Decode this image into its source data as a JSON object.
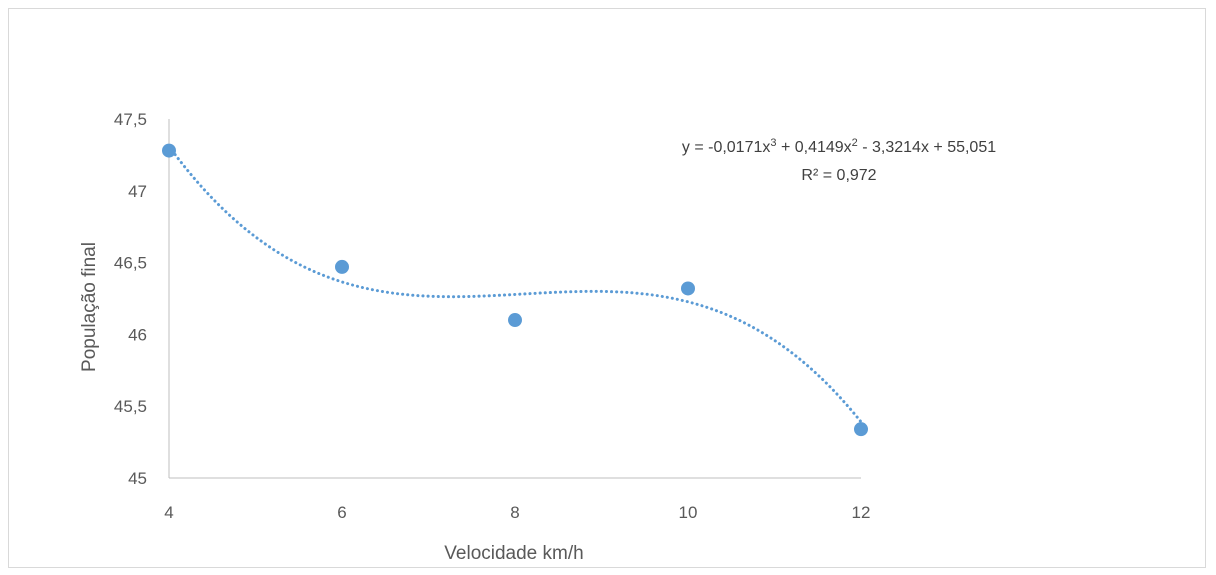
{
  "chart_data": {
    "type": "scatter",
    "xlabel": "Velocidade km/h",
    "ylabel": "População final",
    "x_ticks": [
      "4",
      "6",
      "8",
      "10",
      "12"
    ],
    "y_ticks": [
      "45",
      "45,5",
      "46",
      "46,5",
      "47",
      "47,5"
    ],
    "xlim": [
      4,
      12
    ],
    "ylim": [
      45,
      47.5
    ],
    "grid": false,
    "points": [
      {
        "x": 4,
        "y": 47.28
      },
      {
        "x": 6,
        "y": 46.47
      },
      {
        "x": 8,
        "y": 46.1
      },
      {
        "x": 10,
        "y": 46.32
      },
      {
        "x": 12,
        "y": 45.34
      }
    ],
    "trendline": {
      "type": "polynomial",
      "order": 3,
      "coefficients": {
        "a3": -0.0171,
        "a2": 0.4149,
        "a1": -3.3214,
        "a0": 55.051
      },
      "equation_parts": [
        "y = -0,0171x",
        "3",
        " + 0,4149x",
        "2",
        " - 3,3214x + 55,051"
      ],
      "r_squared_label": "R² = 0,972",
      "style": "dotted"
    },
    "colors": {
      "marker": "#5b9bd5",
      "trendline": "#5b9bd5",
      "axis": "#bfbfbf"
    }
  }
}
